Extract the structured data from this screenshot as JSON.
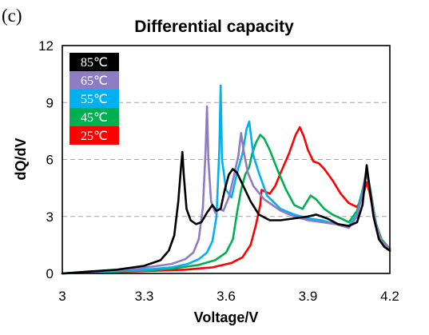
{
  "panel_label": "(c)",
  "chart_data": {
    "type": "line",
    "title": "Differential capacity",
    "xlabel": "Voltage/V",
    "ylabel": "dQ/dV",
    "xlim": [
      3.0,
      4.2
    ],
    "ylim": [
      0,
      12
    ],
    "xticks": [
      3.0,
      3.3,
      3.6,
      3.9,
      4.2
    ],
    "xtick_labels": [
      "3",
      "3.3",
      "3.6",
      "3.9",
      "4.2"
    ],
    "yticks": [
      0,
      3,
      6,
      9,
      12
    ],
    "ytick_labels": [
      "0",
      "3",
      "6",
      "9",
      "12"
    ],
    "grid": "horizontal dashed",
    "legend_position": "top-left",
    "series": [
      {
        "name": "25℃",
        "color": "#ff0000",
        "x": [
          3.0,
          3.1,
          3.2,
          3.3,
          3.45,
          3.55,
          3.62,
          3.66,
          3.69,
          3.71,
          3.725,
          3.73,
          3.745,
          3.76,
          3.78,
          3.8,
          3.83,
          3.855,
          3.87,
          3.885,
          3.9,
          3.92,
          3.94,
          3.96,
          3.99,
          4.02,
          4.05,
          4.08,
          4.1,
          4.115,
          4.125,
          4.14,
          4.16,
          4.18,
          4.2
        ],
        "y": [
          0.0,
          0.04,
          0.08,
          0.12,
          0.2,
          0.32,
          0.55,
          0.85,
          1.5,
          2.6,
          3.6,
          4.4,
          4.3,
          4.2,
          4.6,
          5.3,
          6.3,
          7.3,
          7.7,
          7.2,
          6.5,
          5.9,
          5.8,
          5.5,
          4.9,
          4.2,
          3.7,
          3.5,
          4.0,
          4.8,
          4.3,
          3.2,
          2.0,
          1.4,
          1.2
        ]
      },
      {
        "name": "45℃",
        "color": "#00b050",
        "x": [
          3.0,
          3.1,
          3.2,
          3.3,
          3.4,
          3.5,
          3.56,
          3.6,
          3.625,
          3.64,
          3.655,
          3.67,
          3.685,
          3.695,
          3.71,
          3.725,
          3.74,
          3.76,
          3.79,
          3.82,
          3.85,
          3.88,
          3.91,
          3.93,
          3.96,
          3.99,
          4.02,
          4.05,
          4.08,
          4.1,
          4.115,
          4.13,
          4.15,
          4.17,
          4.2
        ],
        "y": [
          0.0,
          0.05,
          0.1,
          0.15,
          0.25,
          0.45,
          0.7,
          1.1,
          1.8,
          3.2,
          4.4,
          5.2,
          5.6,
          6.3,
          6.9,
          7.3,
          7.1,
          6.5,
          5.4,
          4.4,
          3.6,
          3.4,
          4.1,
          3.9,
          3.4,
          3.1,
          2.9,
          2.7,
          3.3,
          4.4,
          5.4,
          4.3,
          2.6,
          1.8,
          1.3
        ]
      },
      {
        "name": "55℃",
        "color": "#00b0f0",
        "x": [
          3.0,
          3.1,
          3.2,
          3.3,
          3.4,
          3.46,
          3.5,
          3.53,
          3.55,
          3.565,
          3.575,
          3.58,
          3.585,
          3.6,
          3.62,
          3.64,
          3.66,
          3.675,
          3.685,
          3.7,
          3.72,
          3.75,
          3.8,
          3.85,
          3.9,
          3.95,
          4.0,
          4.05,
          4.08,
          4.1,
          4.115,
          4.13,
          4.15,
          4.17,
          4.2
        ],
        "y": [
          0.0,
          0.06,
          0.12,
          0.2,
          0.32,
          0.5,
          0.75,
          1.1,
          1.7,
          3.0,
          6.5,
          9.9,
          6.0,
          4.4,
          4.0,
          5.3,
          6.3,
          7.6,
          8.0,
          6.2,
          5.3,
          4.1,
          3.4,
          3.1,
          2.9,
          2.8,
          2.6,
          2.5,
          3.1,
          4.3,
          5.5,
          4.2,
          2.5,
          1.7,
          1.3
        ]
      },
      {
        "name": "65℃",
        "color": "#8e7cc3",
        "x": [
          3.0,
          3.1,
          3.2,
          3.3,
          3.4,
          3.45,
          3.48,
          3.5,
          3.515,
          3.525,
          3.53,
          3.535,
          3.545,
          3.56,
          3.575,
          3.59,
          3.61,
          3.63,
          3.645,
          3.655,
          3.665,
          3.68,
          3.7,
          3.74,
          3.8,
          3.85,
          3.9,
          3.95,
          4.0,
          4.05,
          4.08,
          4.1,
          4.115,
          4.13,
          4.15,
          4.17,
          4.2
        ],
        "y": [
          0.0,
          0.08,
          0.16,
          0.3,
          0.5,
          0.75,
          1.1,
          1.8,
          3.5,
          6.5,
          8.8,
          6.0,
          3.8,
          3.2,
          3.4,
          3.3,
          4.0,
          5.2,
          6.2,
          7.4,
          6.4,
          5.3,
          4.6,
          3.9,
          3.3,
          3.0,
          2.8,
          2.7,
          2.6,
          2.4,
          3.0,
          4.2,
          5.3,
          4.2,
          2.5,
          1.7,
          1.3
        ]
      },
      {
        "name": "85℃",
        "color": "#000000",
        "x": [
          3.0,
          3.1,
          3.2,
          3.3,
          3.36,
          3.39,
          3.41,
          3.425,
          3.435,
          3.44,
          3.445,
          3.455,
          3.47,
          3.49,
          3.51,
          3.53,
          3.55,
          3.565,
          3.58,
          3.595,
          3.61,
          3.625,
          3.64,
          3.66,
          3.69,
          3.72,
          3.76,
          3.8,
          3.85,
          3.9,
          3.93,
          3.97,
          4.01,
          4.05,
          4.08,
          4.1,
          4.11,
          4.115,
          4.125,
          4.14,
          4.16,
          4.18,
          4.2
        ],
        "y": [
          0.0,
          0.1,
          0.2,
          0.4,
          0.7,
          1.2,
          2.0,
          3.8,
          5.6,
          6.4,
          5.2,
          3.4,
          2.8,
          2.6,
          2.7,
          3.2,
          3.6,
          3.3,
          3.4,
          4.4,
          5.2,
          5.5,
          5.3,
          4.7,
          3.8,
          3.1,
          2.8,
          2.8,
          2.9,
          3.0,
          3.1,
          2.9,
          2.6,
          2.5,
          2.7,
          3.6,
          5.0,
          5.7,
          4.6,
          3.0,
          1.8,
          1.4,
          1.2
        ]
      }
    ]
  }
}
